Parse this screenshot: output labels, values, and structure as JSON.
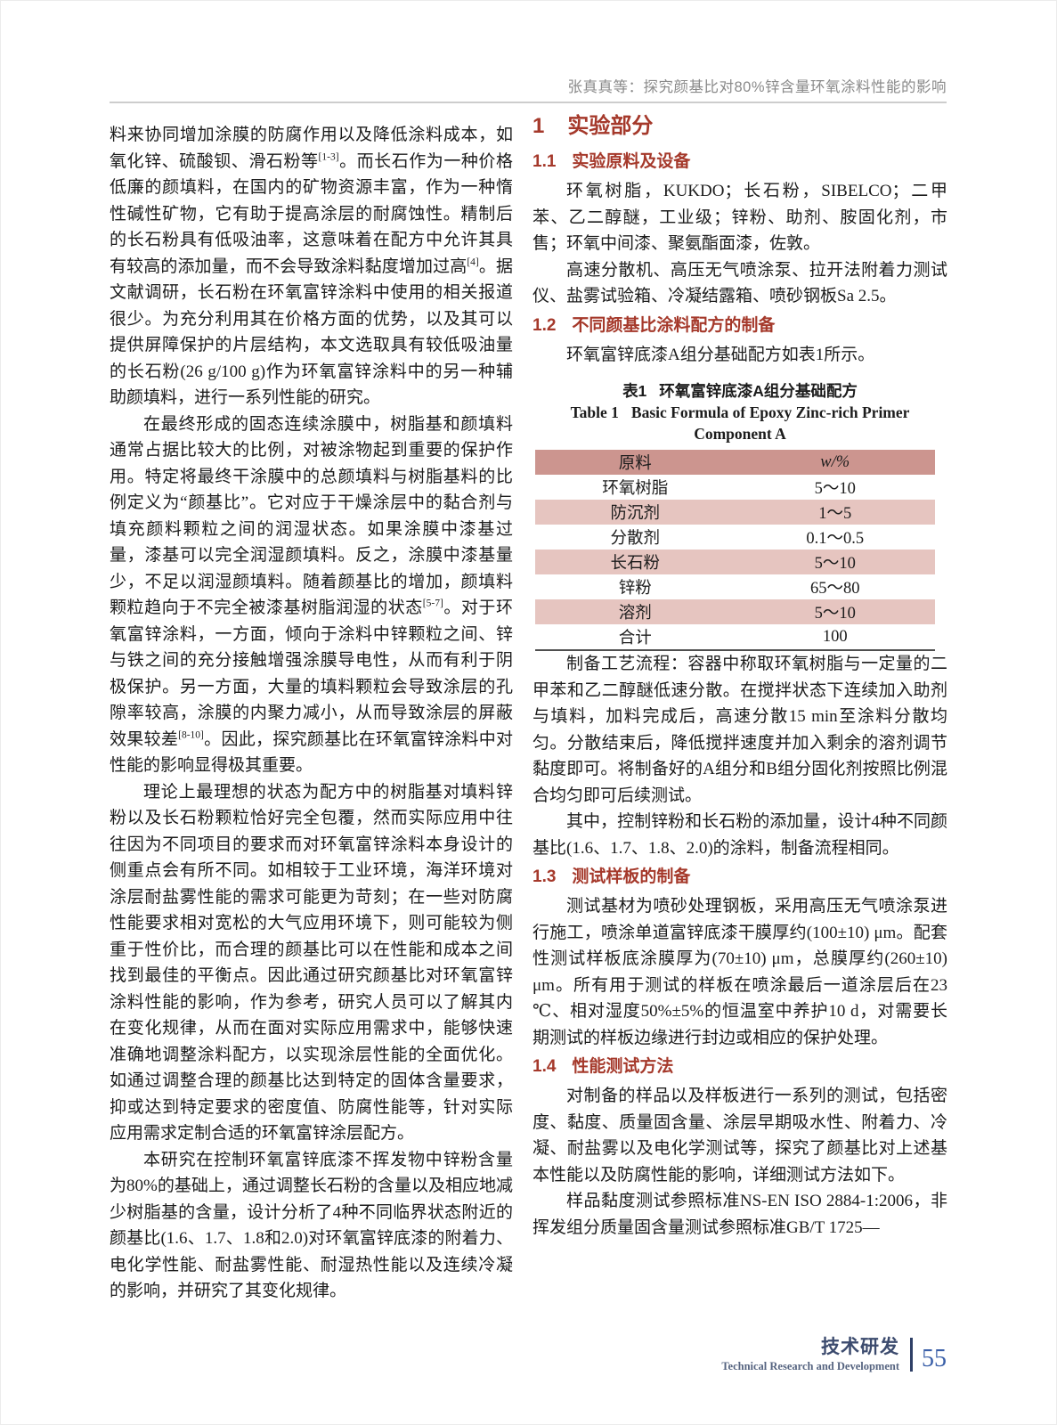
{
  "colors": {
    "accent_red": "#A5392B",
    "table_header_bg": "#CC958F",
    "table_stripe_bg": "#E6C5C0",
    "table_border_dark": "#4F4F4F",
    "running_head_gray": "#8A8A8A",
    "rule_gray": "#CDCDCD",
    "footer_navy": "#3C4B6E",
    "footer_bar_navy": "#2E3F66",
    "page_number_blue": "#3A5FA8",
    "text_color": "#1C1C1C"
  },
  "header": {
    "running_title": "张真真等：探究颜基比对80%锌含量环氧涂料性能的影响"
  },
  "left_column": {
    "p1": {
      "runs": [
        {
          "t": "料来协同增加涂膜的防腐作用以及降低涂料成本，如氧化锌、硫酸钡、滑石粉等"
        },
        {
          "t": "[1-3]",
          "sup": true
        },
        {
          "t": "。而长石作为一种价格低廉的颜填料，在国内的矿物资源丰富，作为一种惰性碱性矿物，它有助于提高涂层的耐腐蚀性。精制后的长石粉具有低吸油率，这意味着在配方中允许其具有较高的添加量，而不会导致涂料黏度增加过高"
        },
        {
          "t": "[4]",
          "sup": true
        },
        {
          "t": "。据文献调研，长石粉在环氧富锌涂料中使用的相关报道很少。为充分利用其在价格方面的优势，以及其可以提供屏障保护的片层结构，本文选取具有较低吸油量的长石粉(26 g/100 g)作为环氧富锌涂料中的另一种辅助颜填料，进行一系列性能的研究。"
        }
      ]
    },
    "p2": {
      "runs": [
        {
          "t": "在最终形成的固态连续涂膜中，树脂基和颜填料通常占据比较大的比例，对被涂物起到重要的保护作用。特定将最终干涂膜中的总颜填料与树脂基料的比例定义为“颜基比”。它对应于干燥涂层中的黏合剂与填充颜料颗粒之间的润湿状态。如果涂膜中漆基过量，漆基可以完全润湿颜填料。反之，涂膜中漆基量少，不足以润湿颜填料。随着颜基比的增加，颜填料颗粒趋向于不完全被漆基树脂润湿的状态"
        },
        {
          "t": "[5-7]",
          "sup": true
        },
        {
          "t": "。对于环氧富锌涂料，一方面，倾向于涂料中锌颗粒之间、锌与铁之间的充分接触增强涂膜导电性，从而有利于阴极保护。另一方面，大量的填料颗粒会导致涂层的孔隙率较高，涂膜的内聚力减小，从而导致涂层的屏蔽效果较差"
        },
        {
          "t": "[8-10]",
          "sup": true
        },
        {
          "t": "。因此，探究颜基比在环氧富锌涂料中对性能的影响显得极其重要。"
        }
      ]
    },
    "p3": {
      "runs": [
        {
          "t": "理论上最理想的状态为配方中的树脂基对填料锌粉以及长石粉颗粒恰好完全包覆，然而实际应用中往往因为不同项目的要求而对环氧富锌涂料本身设计的侧重点会有所不同。如相较于工业环境，海洋环境对涂层耐盐雾性能的需求可能更为苛刻；在一些对防腐性能要求相对宽松的大气应用环境下，则可能较为侧重于性价比，而合理的颜基比可以在性能和成本之间找到最佳的平衡点。因此通过研究颜基比对环氧富锌涂料性能的影响，作为参考，研究人员可以了解其内在变化规律，从而在面对实际应用需求中，能够快速准确地调整涂料配方，以实现涂层性能的全面优化。如通过调整合理的颜基比达到特定的固体含量要求，抑或达到特定要求的密度值、防腐性能等，针对实际应用需求定制合适的环氧富锌涂层配方。"
        }
      ]
    },
    "p4": {
      "runs": [
        {
          "t": "本研究在控制环氧富锌底漆不挥发物中锌粉含量为80%的基础上，通过调整长石粉的含量以及相应地减少树脂基的含量，设计分析了4种不同临界状态附近的颜基比(1.6、1.7、1.8和2.0)对环氧富锌底漆的附着力、电化学性能、耐盐雾性能、耐湿热性能以及连续冷凝的影响，并研究了其变化规律。"
        }
      ]
    }
  },
  "right_column": {
    "section1": {
      "number": "1",
      "title": "实验部分"
    },
    "section11": {
      "number": "1.1",
      "title": "实验原料及设备"
    },
    "para_materials": "环氧树脂，KUKDO；长石粉，SIBELCO；二甲苯、乙二醇醚，工业级；锌粉、助剂、胺固化剂，市售；环氧中间漆、聚氨酯面漆，佐敦。",
    "para_equipment": "高速分散机、高压无气喷涂泵、拉开法附着力测试仪、盐雾试验箱、冷凝结露箱、喷砂钢板Sa 2.5。",
    "section12": {
      "number": "1.2",
      "title": "不同颜基比涂料配方的制备"
    },
    "para_formula_intro": "环氧富锌底漆A组分基础配方如表1所示。",
    "para_process": "制备工艺流程：容器中称取环氧树脂与一定量的二甲苯和乙二醇醚低速分散。在搅拌状态下连续加入助剂与填料，加料完成后，高速分散15 min至涂料分散均匀。分散结束后，降低搅拌速度并加入剩余的溶剂调节黏度即可。将制备好的A组分和B组分固化剂按照比例混合均匀即可后续测试。",
    "para_ratios": "其中，控制锌粉和长石粉的添加量，设计4种不同颜基比(1.6、1.7、1.8、2.0)的涂料，制备流程相同。",
    "section13": {
      "number": "1.3",
      "title": "测试样板的制备"
    },
    "para_panels": "测试基材为喷砂处理钢板，采用高压无气喷涂泵进行施工，喷涂单道富锌底漆干膜厚约(100±10) μm。配套性测试样板底涂膜厚为(70±10) μm，总膜厚约(260±10) μm。所有用于测试的样板在喷涂最后一道涂层后在23 ℃、相对湿度50%±5%的恒温室中养护10 d，对需要长期测试的样板边缘进行封边或相应的保护处理。",
    "section14": {
      "number": "1.4",
      "title": "性能测试方法"
    },
    "para_tests": "对制备的样品以及样板进行一系列的测试，包括密度、黏度、质量固含量、涂层早期吸水性、附着力、冷凝、耐盐雾以及电化学测试等，探究了颜基比对上述基本性能以及防腐性能的影响，详细测试方法如下。",
    "para_standards": "样品黏度测试参照标准NS-EN ISO 2884-1:2006，非挥发组分质量固含量测试参照标准GB/T 1725—"
  },
  "table1": {
    "caption_zh_label": "表1",
    "caption_zh_text": "环氧富锌底漆A组分基础配方",
    "caption_en_label": "Table 1",
    "caption_en_text": "Basic Formula of Epoxy Zinc-rich Primer",
    "caption_en_line2": "Component A",
    "columns": [
      "原料",
      "w/%"
    ],
    "rows": [
      [
        "环氧树脂",
        "5～10"
      ],
      [
        "防沉剂",
        "1～5"
      ],
      [
        "分散剂",
        "0.1～0.5"
      ],
      [
        "长石粉",
        "5～10"
      ],
      [
        "锌粉",
        "65～80"
      ],
      [
        "溶剂",
        "5～10"
      ],
      [
        "合计",
        "100"
      ]
    ]
  },
  "chart_data": {
    "type": "table",
    "title": "表1 环氧富锌底漆A组分基础配方 / Table 1 Basic Formula of Epoxy Zinc-rich Primer Component A",
    "columns": [
      "原料",
      "w/%"
    ],
    "rows": [
      [
        "环氧树脂",
        "5～10"
      ],
      [
        "防沉剂",
        "1～5"
      ],
      [
        "分散剂",
        "0.1～0.5"
      ],
      [
        "长石粉",
        "5～10"
      ],
      [
        "锌粉",
        "65～80"
      ],
      [
        "溶剂",
        "5～10"
      ],
      [
        "合计",
        "100"
      ]
    ]
  },
  "footer": {
    "section_zh": "技术研发",
    "section_en": "Technical Research and Development",
    "page_number": "55"
  }
}
